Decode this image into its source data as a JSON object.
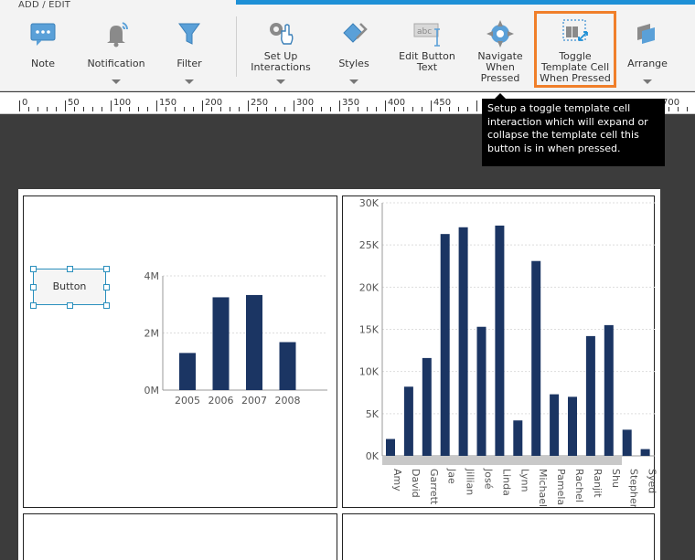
{
  "ribbon": {
    "group_label": "ADD / EDIT",
    "buttons": [
      {
        "label": "Note",
        "icon": "note-icon"
      },
      {
        "label": "Notification",
        "icon": "bell-icon"
      },
      {
        "label": "Filter",
        "icon": "filter-icon"
      },
      {
        "label": "Set Up Interactions",
        "icon": "gear-hand-icon"
      },
      {
        "label": "Styles",
        "icon": "paint-bucket-icon"
      },
      {
        "label": "Edit Button Text",
        "icon": "text-box-icon"
      },
      {
        "label": "Navigate When Pressed",
        "icon": "compass-icon"
      },
      {
        "label": "Toggle Template Cell When Pressed",
        "icon": "toggle-cell-icon"
      },
      {
        "label": "Arrange",
        "icon": "layers-icon"
      }
    ],
    "accent_color": "#1e90d6",
    "highlight_color": "#f07f2a"
  },
  "ruler": {
    "labels": [
      "0",
      "50",
      "100",
      "150",
      "200",
      "250",
      "300",
      "350",
      "400",
      "450",
      "700"
    ]
  },
  "tooltip": {
    "text": "Setup a toggle template cell interaction which will expand or collapse the template cell this button is in when pressed."
  },
  "canvas": {
    "button_label": "Button"
  },
  "chart_data": [
    {
      "type": "bar",
      "categories": [
        "2005",
        "2006",
        "2007",
        "2008"
      ],
      "values": [
        1300000,
        3250000,
        3330000,
        1680000
      ],
      "ylim": [
        0,
        4000000
      ],
      "yticks": [
        "0M",
        "2M",
        "4M"
      ],
      "color": "#1b3563",
      "grid": true
    },
    {
      "type": "bar",
      "categories": [
        "Amy",
        "David",
        "Garrett",
        "Jae",
        "Jillian",
        "José",
        "Linda",
        "Lynn",
        "Michael",
        "Pamela",
        "Rachel",
        "Ranjit",
        "Shu",
        "Stephen",
        "Syed"
      ],
      "values": [
        2000,
        8200,
        11600,
        26300,
        27100,
        15300,
        27300,
        4200,
        23100,
        7300,
        7000,
        14200,
        15500,
        3100,
        800
      ],
      "ylim": [
        0,
        30000
      ],
      "yticks": [
        "0K",
        "5K",
        "10K",
        "15K",
        "20K",
        "25K",
        "30K"
      ],
      "color": "#1b3563",
      "grid": true
    }
  ]
}
